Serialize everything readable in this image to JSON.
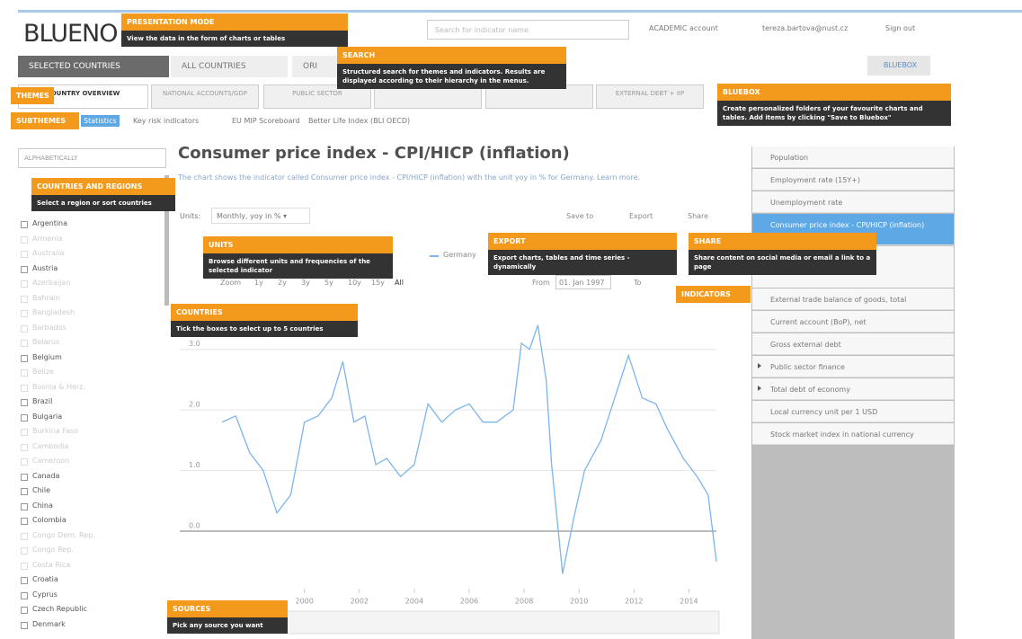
{
  "header": {
    "logo": "BLUENO",
    "search_placeholder": "Search for indicator name",
    "account": "ACADEMIC account",
    "user": "tereza.bartova@nust.cz",
    "sign_out": "Sign out"
  },
  "tabs": [
    "SELECTED COUNTRIES",
    "ALL COUNTRIES",
    "ORI"
  ],
  "bluebox": "BLUEBOX",
  "themes": [
    "COUNTRY OVERVIEW",
    "NATIONAL ACCOUNTS/GDP",
    "PUBLIC SECTOR",
    "EXTERNAL DEBT + IIP"
  ],
  "subthemes": [
    "Statistics",
    "Key risk indicators",
    "EU MIP Scoreboard",
    "Better Life Index (BLI OECD)"
  ],
  "countries": {
    "sort": "ALPHABETICALLY",
    "list": [
      {
        "name": "Argentina",
        "active": true
      },
      {
        "name": "Armenia",
        "active": false
      },
      {
        "name": "Australia",
        "active": false
      },
      {
        "name": "Austria",
        "active": true
      },
      {
        "name": "Azerbaijan",
        "active": false
      },
      {
        "name": "Bahrain",
        "active": false
      },
      {
        "name": "Bangladesh",
        "active": false
      },
      {
        "name": "Barbados",
        "active": false
      },
      {
        "name": "Belarus",
        "active": false
      },
      {
        "name": "Belgium",
        "active": true
      },
      {
        "name": "Belize",
        "active": false
      },
      {
        "name": "Bosnia & Herz.",
        "active": false
      },
      {
        "name": "Brazil",
        "active": true
      },
      {
        "name": "Bulgaria",
        "active": true
      },
      {
        "name": "Burkina Faso",
        "active": false
      },
      {
        "name": "Cambodia",
        "active": false
      },
      {
        "name": "Cameroon",
        "active": false
      },
      {
        "name": "Canada",
        "active": true
      },
      {
        "name": "Chile",
        "active": true
      },
      {
        "name": "China",
        "active": true
      },
      {
        "name": "Colombia",
        "active": true
      },
      {
        "name": "Congo Dem. Rep.",
        "active": false
      },
      {
        "name": "Congo Rep.",
        "active": false
      },
      {
        "name": "Costa Rica",
        "active": false
      },
      {
        "name": "Croatia",
        "active": true
      },
      {
        "name": "Cyprus",
        "active": true
      },
      {
        "name": "Czech Republic",
        "active": true
      },
      {
        "name": "Denmark",
        "active": true
      }
    ]
  },
  "main": {
    "title": "Consumer price index - CPI/HICP (inflation)",
    "description": "The chart shows the indicator called Consumer price index - CPI/HICP (inflation) with the unit yoy in % for Germany. Learn more.",
    "units_label": "Units:",
    "units_value": "Monthly, yoy in % ▾",
    "save": "Save to",
    "export": "Export",
    "share": "Share",
    "zoom_label": "Zoom",
    "zoom": [
      "1y",
      "2y",
      "3y",
      "5y",
      "10y",
      "15y",
      "All"
    ],
    "from_label": "From",
    "from_value": "01. Jan 1997",
    "to_label": "To"
  },
  "chart_data": {
    "type": "line",
    "x": [
      1997.0,
      1997.5,
      1998.0,
      1998.5,
      1999.0,
      1999.5,
      2000.0,
      2000.5,
      2001.0,
      2001.4,
      2001.8,
      2002.2,
      2002.6,
      2003.0,
      2003.5,
      2004.0,
      2004.5,
      2005.0,
      2005.5,
      2006.0,
      2006.5,
      2007.0,
      2007.6,
      2007.9,
      2008.2,
      2008.5,
      2008.8,
      2009.0,
      2009.4,
      2009.8,
      2010.2,
      2010.8,
      2011.3,
      2011.8,
      2012.3,
      2012.8,
      2013.2,
      2013.8,
      2014.3,
      2014.7,
      2015.0
    ],
    "series": [
      {
        "name": "Germany",
        "color": "#7cb5ec",
        "values": [
          1.8,
          1.9,
          1.3,
          1.0,
          0.3,
          0.6,
          1.8,
          1.9,
          2.2,
          2.8,
          1.8,
          1.9,
          1.1,
          1.2,
          0.9,
          1.1,
          2.1,
          1.8,
          2.0,
          2.1,
          1.8,
          1.8,
          2.0,
          3.1,
          3.0,
          3.4,
          2.5,
          1.1,
          -0.7,
          0.2,
          1.0,
          1.5,
          2.2,
          2.9,
          2.2,
          2.1,
          1.7,
          1.2,
          0.9,
          0.6,
          -0.5
        ]
      }
    ],
    "xlim": [
      1997,
      2015
    ],
    "ylim": [
      -0.8,
      3.5
    ],
    "xticks": [
      2000,
      2002,
      2004,
      2006,
      2008,
      2010,
      2012,
      2014
    ],
    "yticks": [
      {
        "value": 0,
        "label": "0.0"
      },
      {
        "value": 1,
        "label": "1.0"
      },
      {
        "value": 2,
        "label": "2.0"
      },
      {
        "value": 3,
        "label": "3.0"
      }
    ],
    "grid": true
  },
  "indicators": [
    {
      "name": "Population",
      "selected": false,
      "expandable": false
    },
    {
      "name": "Employment rate (15Y+)",
      "selected": false,
      "expandable": false
    },
    {
      "name": "Unemployment rate",
      "selected": false,
      "expandable": false
    },
    {
      "name": "Consumer price index - CPI/HICP (inflation)",
      "selected": true,
      "expandable": false
    },
    {
      "name": "External trade balance of goods, total",
      "selected": false,
      "expandable": false
    },
    {
      "name": "Current account (BoP), net",
      "selected": false,
      "expandable": false
    },
    {
      "name": "Gross external debt",
      "selected": false,
      "expandable": false
    },
    {
      "name": "Public sector finance",
      "selected": false,
      "expandable": true
    },
    {
      "name": "Total debt of economy",
      "selected": false,
      "expandable": true
    },
    {
      "name": "Local currency unit per 1 USD",
      "selected": false,
      "expandable": false
    },
    {
      "name": "Stock market index in national currency",
      "selected": false,
      "expandable": false
    }
  ],
  "tooltips": [
    {
      "title": "PRESENTATION MODE",
      "text": "View the data in the form of charts or tables"
    },
    {
      "title": "SEARCH",
      "text": "Structured search for themes and indicators. Results are displayed according to their hierarchy in the menus."
    },
    {
      "title": "THEMES",
      "text": null
    },
    {
      "title": "SUBTHEMES",
      "text": null
    },
    {
      "title": "BLUEBOX",
      "text": "Create personalized folders of your favourite charts and tables. Add items by clicking \"Save to Bluebox\""
    },
    {
      "title": "COUNTRIES AND REGIONS",
      "text": "Select a region or sort countries"
    },
    {
      "title": "UNITS",
      "text": "Browse different units and frequencies of the selected indicator"
    },
    {
      "title": "EXPORT",
      "text": "Export charts, tables and time series - dynamically"
    },
    {
      "title": "SHARE",
      "text": "Share content on social media or email a link to a page"
    },
    {
      "title": "INDICATORS",
      "text": null
    },
    {
      "title": "COUNTRIES",
      "text": "Tick the boxes to select up to 5 countries"
    },
    {
      "title": "SOURCES",
      "text": "Pick any source you want"
    }
  ]
}
